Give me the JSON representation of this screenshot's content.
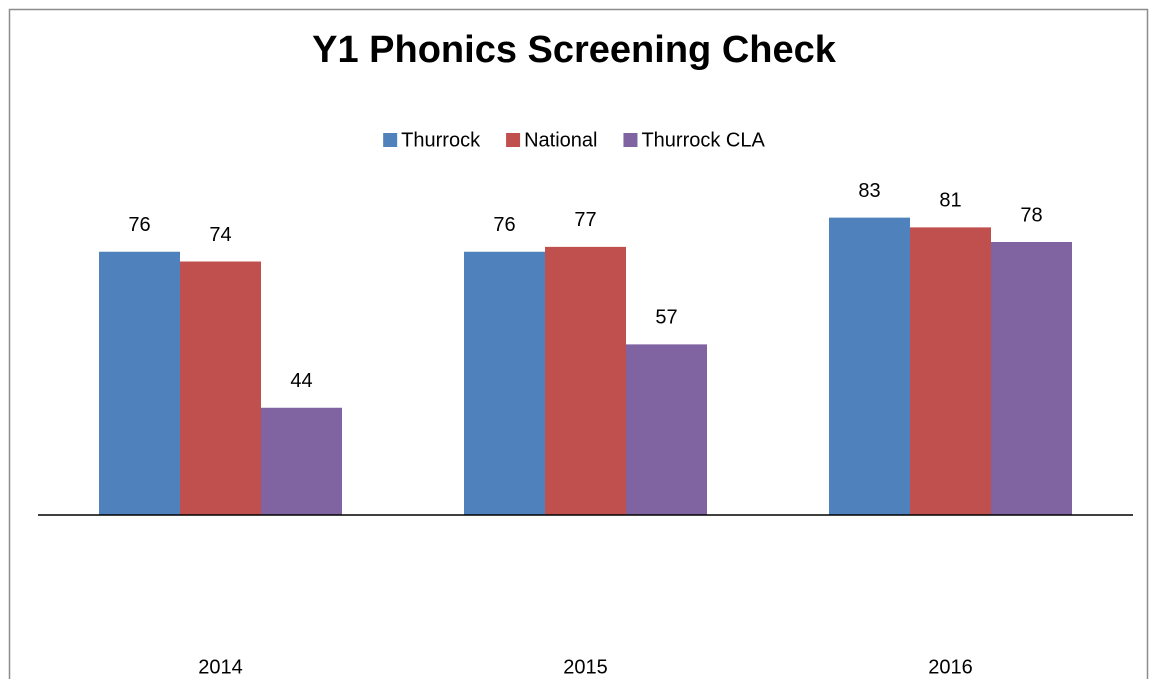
{
  "chart_data": {
    "type": "bar",
    "title": "Y1 Phonics Screening Check",
    "categories": [
      "2014",
      "2015",
      "2016"
    ],
    "series": [
      {
        "name": "Thurrock",
        "color": "#4f81bd",
        "values": [
          76,
          76,
          83
        ]
      },
      {
        "name": "National",
        "color": "#c0504d",
        "values": [
          74,
          77,
          81
        ]
      },
      {
        "name": "Thurrock CLA",
        "color": "#8064a2",
        "values": [
          44,
          57,
          78
        ]
      }
    ],
    "ylim": [
      22,
      90
    ],
    "legend": "top",
    "grid": false
  }
}
